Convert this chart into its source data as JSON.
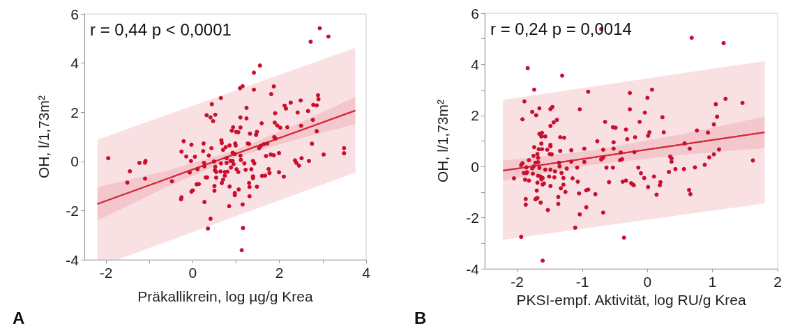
{
  "chart_data": [
    {
      "type": "scatter",
      "xlabel": "Präkallikrein, log µg/g Krea",
      "ylabel": "OH, l/1,73m²",
      "xlim": [
        -2.5,
        4
      ],
      "ylim": [
        -4,
        6
      ],
      "xticks": [
        -2,
        {
          "value": -1,
          "label": null
        },
        0,
        {
          "value": 1,
          "label": null
        },
        2,
        {
          "value": 3,
          "label": null
        },
        4
      ],
      "yticks": [
        -4,
        -2,
        0,
        2,
        4,
        6
      ],
      "annotations": [
        "r = 0,44 p < 0,0001",
        "A"
      ],
      "series": [
        {
          "type": "line",
          "marker": "none",
          "color": "#d42a3a",
          "x": [
            -2.2,
            -1.74,
            3.75
          ],
          "values": [
            -1.73,
            -1.44,
            2.07
          ],
          "lower": [
            -4,
            -4,
            -0.45
          ],
          "upper": [
            0.89,
            1.18,
            4.62
          ]
        },
        {
          "type": "line",
          "marker": "none",
          "color": "#d42a3a",
          "x": [
            -2.2,
            -0.6,
            0.97,
            2.4,
            3.75
          ],
          "values": [
            -1.73,
            -0.71,
            0.3,
            1.21,
            2.07
          ],
          "lower": [
            -2.41,
            -1.04,
            0.16,
            0.9,
            1.52
          ],
          "upper": [
            -1.05,
            -0.38,
            0.44,
            1.52,
            2.62
          ]
        },
        {
          "type": "scatter",
          "marker": "circle",
          "color": "#c8102e",
          "x": [
            2.93,
            3.13,
            2.72,
            1.55,
            1.41,
            1.15,
            1.09,
            1.41,
            1.87,
            1.81,
            0.65,
            2.89,
            2.9,
            2.49,
            2.26,
            2.12,
            2.15,
            2.78,
            2.86,
            1.24,
            0.44,
            2.66,
            2.42,
            0.32,
            0.41,
            0.52,
            0.47,
            1.1,
            1.24,
            1.9,
            2.77,
            1.59,
            1.89,
            1.95,
            2.02,
            2.18,
            2.5,
            2.86,
            0.93,
            1.1,
            0.9,
            1,
            1.05,
            1.32,
            1.48,
            1.46,
            1.88,
            1.91,
            1.27,
            1.3,
            1.64,
            1.72,
            1.57,
            1.53,
            2.75,
            0.66,
            0.67,
            0.85,
            0.98,
            0.99,
            0.43,
            0.25,
            -0.03,
            -0.21,
            -0.26,
            -0.15,
            0.24,
            0.37,
            0.05,
            0.7,
            0.76,
            0.92,
            0.97,
            1.1,
            1.69,
            1.8,
            1.87,
            1.99,
            3.02,
            3.49,
            3.49,
            -1.95,
            -1.23,
            -1.1,
            -1.09,
            -1.45,
            -1.51,
            -1.1,
            -0.48,
            -0.04,
            -0.07,
            0.11,
            0.26,
            0.27,
            0.49,
            0.52,
            0.65,
            0.78,
            0.87,
            0.92,
            0.94,
            0.78,
            0.51,
            0.54,
            0.64,
            0.74,
            0.8,
            0.88,
            1.01,
            1.05,
            1.19,
            1.22,
            1.39,
            1.42,
            1.35,
            1.39,
            1.39,
            1.6,
            1.67,
            1.75,
            1.77,
            1.99,
            2.1,
            2.36,
            2.39,
            2.45,
            2.51,
            2.68,
            0.3,
            0.33,
            0.54,
            0.7,
            0.74,
            0.67,
            0.09,
            0.14,
            0.5,
            0.85,
            1.06,
            0.97,
            0.97,
            1.3,
            1.31,
            1.48,
            1.31,
            0,
            -0.03,
            0.5,
            -0.26,
            -0.27,
            0.27,
            0.84,
            1.15,
            0.41,
            0.35,
            1.16,
            1.13,
            1.11
          ],
          "values": [
            5.42,
            5.08,
            4.87,
            3.9,
            3.61,
            3.06,
            2.98,
            2.92,
            3.05,
            2.74,
            2.58,
            2.69,
            2.53,
            2.48,
            2.39,
            2.27,
            2.15,
            2.3,
            2.28,
            2.18,
            2.33,
            2.05,
            1.99,
            1.88,
            1.79,
            1.9,
            1.64,
            1.79,
            1.75,
            1.96,
            1.69,
            1.55,
            1.58,
            1.46,
            1.37,
            1.39,
            1.45,
            1.23,
            1.39,
            1.38,
            1.25,
            1.2,
            1.19,
            1.13,
            1.2,
            1.08,
            0.99,
            0.93,
            0.73,
            0.71,
            0.7,
            0.73,
            0.63,
            0.54,
            0.72,
            0.86,
            0.75,
            0.65,
            0.73,
            0.65,
            0.54,
            0.73,
            0.68,
            0.82,
            0.4,
            0.2,
            0.42,
            0.24,
            0.19,
            0.47,
            0.58,
            0.35,
            0.3,
            0.23,
            0.22,
            0.28,
            0.25,
            0.34,
            0.28,
            0.54,
            0.33,
            0.13,
            -0.06,
            -0.05,
            0.02,
            -0.4,
            -0.86,
            -0.7,
            -0.81,
            0.02,
            -0.45,
            -0.32,
            -0.06,
            -0.2,
            0,
            -0.22,
            -0.08,
            0.13,
            0.02,
            0.02,
            -0.11,
            -0.06,
            -0.36,
            -0.43,
            -0.41,
            -0.43,
            -0.42,
            -0.25,
            -0.32,
            -0.43,
            -0.08,
            -0.34,
            0.02,
            -0.08,
            -0.32,
            -0.61,
            -0.68,
            -0.59,
            -0.58,
            -0.31,
            -0.47,
            -0.44,
            -0.62,
            0.04,
            -0.06,
            -0.17,
            0.13,
            0.02,
            -0.65,
            -0.65,
            -0.66,
            -0.74,
            -0.58,
            -0.88,
            -0.93,
            -0.92,
            -1,
            -1.02,
            -1.14,
            -1.28,
            -1.37,
            -0.88,
            -1.04,
            -1.03,
            -1.42,
            -1.18,
            -1.23,
            -1.19,
            -1.46,
            -1.54,
            -1.65,
            -1.82,
            -1.75,
            -2.33,
            -2.73,
            -2.71,
            -3.61,
            0.06
          ]
        }
      ]
    },
    {
      "type": "scatter",
      "xlabel": "PKSI-empf. Aktivität, log RU/g Krea",
      "ylabel": "OH, l/1,73m²",
      "xlim": [
        -2.5,
        2
      ],
      "ylim": [
        -4,
        6
      ],
      "xticks": [
        -2,
        -1,
        0,
        1,
        2
      ],
      "yticks": [
        -4,
        {
          "value": -3,
          "label": null
        },
        -2,
        {
          "value": -1,
          "label": null
        },
        0,
        {
          "value": 1,
          "label": null
        },
        2,
        {
          "value": 3,
          "label": null
        },
        4,
        {
          "value": 5,
          "label": null
        },
        6
      ],
      "annotations": [
        "r = 0,24 p = 0,0014",
        "B"
      ],
      "series": [
        {
          "type": "line",
          "marker": "none",
          "color": "#d42a3a",
          "x": [
            -2.22,
            1.8
          ],
          "values": [
            -0.16,
            1.34
          ],
          "lower": [
            -2.87,
            -1.44
          ],
          "upper": [
            2.61,
            4.13
          ]
        },
        {
          "type": "line",
          "marker": "none",
          "color": "#d42a3a",
          "x": [
            -2.22,
            -0.9,
            0.5,
            1.8
          ],
          "values": [
            -0.16,
            0.33,
            0.85,
            1.34
          ],
          "lower": [
            -0.55,
            0.05,
            0.45,
            0.72
          ],
          "upper": [
            0.23,
            0.61,
            1.25,
            1.96
          ]
        },
        {
          "type": "scatter",
          "marker": "circle",
          "color": "#c8102e",
          "x": [
            -0.71,
            0.68,
            1.17,
            -1.84,
            -1.31,
            -1.74,
            -0.91,
            -0.27,
            0.07,
            -1.89,
            0,
            1.05,
            1.2,
            1.46,
            -1.66,
            -1.77,
            -1.71,
            -1.49,
            -1.46,
            -1.04,
            -0.27,
            -0.04,
            0.23,
            1.07,
            -1.92,
            -1.39,
            -1.44,
            -1.49,
            -0.65,
            -0.12,
            -0.53,
            -0.49,
            -0.33,
            1.02,
            0.76,
            0.93,
            -1.66,
            -1.62,
            -1.57,
            -1.63,
            -1.34,
            -1.28,
            0.03,
            0.01,
            0.25,
            -0.19,
            -0.31,
            -0.77,
            -0.52,
            -1.63,
            -1.49,
            -1.49,
            -1.74,
            -1.67,
            -1.62,
            -1.54,
            -1.34,
            -1.17,
            -0.97,
            -0.68,
            -0.52,
            -0.41,
            -0.2,
            -1.5,
            -1.47,
            -1.69,
            -1.75,
            -1.82,
            -1.68,
            -1.92,
            -1.94,
            -1.86,
            -1.77,
            -1.75,
            -1.72,
            -1.68,
            -1.66,
            -1.57,
            -1.49,
            -1.36,
            -1.35,
            -1.17,
            -0.97,
            -0.71,
            -0.68,
            -0.42,
            -0.39,
            -1.24,
            -1.32,
            -1.08,
            -0.63,
            -0.53,
            -0.14,
            -0.1,
            -0.05,
            0.1,
            0.33,
            0.35,
            0.37,
            0.37,
            0.43,
            0.56,
            0.57,
            0.65,
            0.73,
            0.88,
            0.95,
            1.02,
            1.1,
            1.62,
            0.64,
            0.66,
            0.2,
            0.19,
            0.14,
            0.01,
            -0.23,
            -0.21,
            -0.25,
            -0.33,
            -0.38,
            -0.59,
            -2.05,
            -1.9,
            -1.86,
            -1.88,
            -1.85,
            -1.82,
            -1.76,
            -1.68,
            -1.64,
            -1.63,
            -1.61,
            -1.59,
            -1.61,
            -1.51,
            -1.43,
            -1.69,
            -1.49,
            -1.42,
            -1.29,
            -1.15,
            -1.07,
            -1.29,
            -1.33,
            -1.26,
            -1.05,
            -0.94,
            -0.91,
            -0.8,
            -1.7,
            -1.71,
            -1.72,
            -1.69,
            -1.87,
            -1.87,
            -1.64,
            -1.53,
            -1.37,
            -1.37,
            -0.94,
            -1.04,
            -0.68,
            -1.11,
            -1.94,
            -0.36,
            -1.61
          ],
          "values": [
            5.38,
            5.04,
            4.83,
            3.85,
            3.56,
            3.01,
            2.93,
            2.88,
            3.01,
            2.55,
            2.69,
            2.44,
            2.65,
            2.49,
            2.28,
            2.14,
            2.01,
            2.25,
            2.33,
            2.24,
            2.24,
            2.11,
            1.93,
            1.95,
            1.85,
            1.83,
            1.73,
            1.59,
            1.75,
            1.75,
            1.54,
            1.52,
            1.45,
            1.65,
            1.41,
            1.33,
            1.28,
            1.32,
            1.18,
            1.18,
            1.15,
            1.13,
            1.34,
            1.21,
            1.34,
            1.15,
            1.07,
            0.99,
            0.95,
            0.9,
            0.85,
            0.79,
            0.76,
            0.68,
            0.68,
            0.66,
            0.61,
            0.64,
            0.7,
            0.66,
            0.7,
            0.55,
            0.57,
            0.49,
            0.48,
            0.49,
            0.42,
            0.25,
            0.34,
            0.13,
            0.06,
            -0.03,
            -0.07,
            0,
            0.15,
            0.17,
            -0.05,
            -0.12,
            -0.12,
            0.15,
            0.01,
            0.19,
            0.18,
            0.28,
            0.35,
            0.25,
            0.29,
            -0.08,
            -0.25,
            -0.04,
            -0.04,
            -0.04,
            -0.04,
            -0.26,
            -0.45,
            -0.39,
            -0.21,
            0.39,
            0.32,
            0.19,
            -0.1,
            -0.1,
            0.91,
            0.7,
            -0.03,
            0.07,
            0.36,
            0.48,
            0.67,
            0.24,
            -0.92,
            -1.08,
            -0.61,
            -0.73,
            -1.1,
            -0.8,
            -0.69,
            -0.73,
            -0.65,
            -0.55,
            -0.59,
            -0.61,
            -0.46,
            -0.25,
            -0.25,
            -0.51,
            -0.22,
            -0.55,
            -0.28,
            -0.36,
            -0.39,
            -0.5,
            -0.45,
            -0.66,
            -0.7,
            -0.39,
            -0.42,
            -0.63,
            -0.76,
            -0.19,
            -0.45,
            -0.46,
            -0.59,
            -0.71,
            -0.85,
            -0.99,
            -1.05,
            -0.93,
            -0.9,
            -1.08,
            -0.94,
            -1.25,
            -1.28,
            -1.23,
            -1.27,
            -1.49,
            -1.41,
            -1.7,
            -1.19,
            -1.46,
            -1.59,
            -1.87,
            -1.8,
            -2.39,
            -2.75,
            -2.78,
            -3.68
          ]
        }
      ]
    }
  ]
}
